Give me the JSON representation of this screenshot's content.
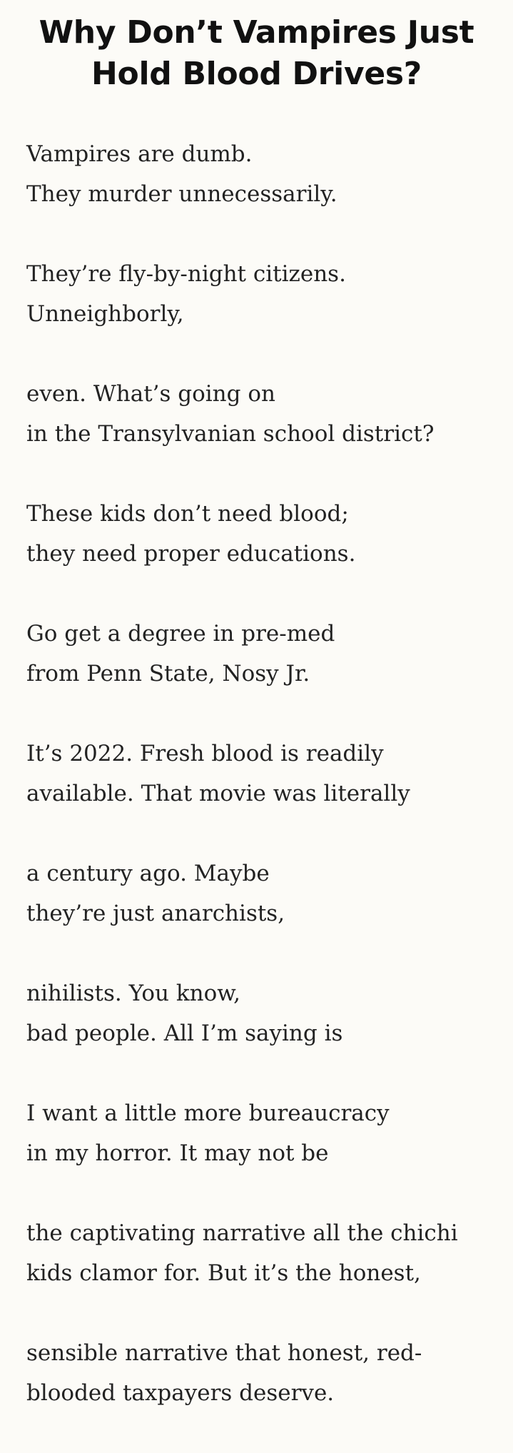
{
  "title_lines": [
    "Why Don’t Vampires Just",
    "Hold Blood Drives?"
  ],
  "stanzas": [
    [
      "Vampires are dumb.",
      "They murder unnecessarily."
    ],
    [
      "They’re fly-by-night citizens.",
      "Unneighborly,"
    ],
    [
      "even. What’s going on",
      "in the Transylvanian school district?"
    ],
    [
      "These kids don’t need blood;",
      "they need proper educations."
    ],
    [
      "Go get a degree in pre-med",
      "from Penn State, Nosy Jr."
    ],
    [
      "It’s 2022. Fresh blood is readily",
      "available. That movie was literally"
    ],
    [
      "a century ago. Maybe",
      "they’re just anarchists,"
    ],
    [
      "nihilists. You know,",
      "bad people. All I’m saying is"
    ],
    [
      "I want a little more bureaucracy",
      "in my horror. It may not be"
    ],
    [
      "the captivating narrative all the chichi",
      "kids clamor for. But it’s the honest,"
    ],
    [
      "sensible narrative that honest, red-",
      "blooded taxpayers deserve."
    ]
  ]
}
